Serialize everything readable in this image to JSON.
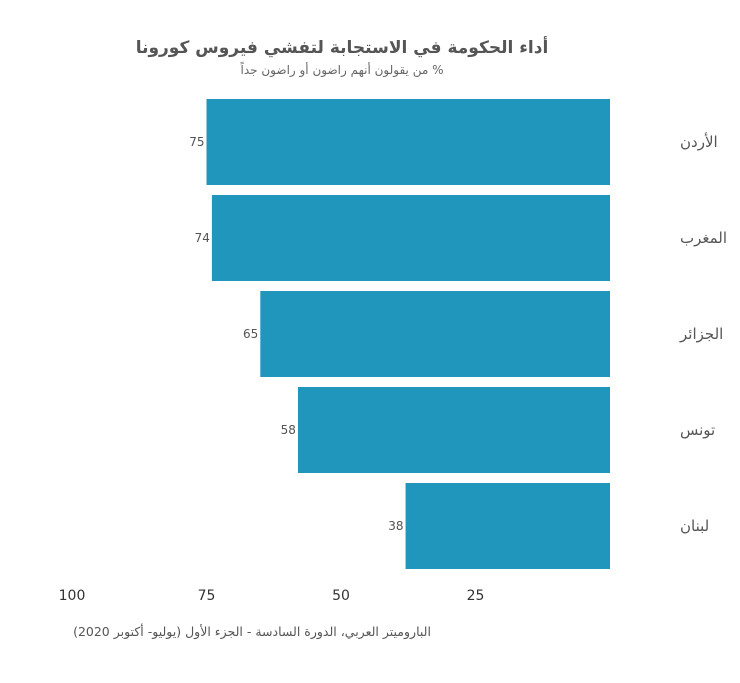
{
  "chart_data": {
    "type": "bar",
    "orientation": "horizontal",
    "title": "أداء الحكومة في الاستجابة لتفشي فيروس كورونا",
    "subtitle": "% من يقولون أنهم راضون أو راضون جداً",
    "categories": [
      "الأردن",
      "المغرب",
      "الجزائر",
      "تونس",
      "لبنان"
    ],
    "values": [
      75,
      74,
      65,
      58,
      38
    ],
    "xlim": [
      0,
      100
    ],
    "x_reversed": true,
    "x_ticks": [
      100,
      75,
      50,
      25
    ],
    "bar_color": "#2196bd",
    "grid": false,
    "legend": "none"
  },
  "source": "الباروميتر العربي، الدورة السادسة - الجزء الأول (يوليو- أكتوبر 2020)"
}
